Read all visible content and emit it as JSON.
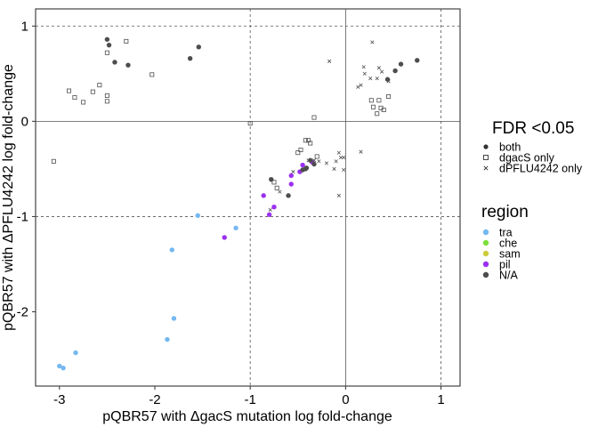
{
  "chart_data": {
    "type": "scatter",
    "xlabel": "pQBR57 with ΔgacS mutation log fold-change",
    "ylabel": "pQBR57 with ΔPFLU4242 log fold-change",
    "xlim": [
      -3.25,
      1.2
    ],
    "ylim": [
      -2.78,
      1.18
    ],
    "x_ticks": [
      -3,
      -2,
      -1,
      0,
      1
    ],
    "x_tick_labels": [
      "-3",
      "-2",
      "-1",
      "0",
      "1"
    ],
    "y_ticks": [
      -2,
      -1,
      0,
      1
    ],
    "y_tick_labels": [
      "-2",
      "-1",
      "0",
      "1"
    ],
    "reference_lines": {
      "solid": {
        "x": 0,
        "y": 0
      },
      "dashed": {
        "x": [
          -1,
          1
        ],
        "y": [
          -1,
          1
        ]
      }
    },
    "grid": false,
    "legend_placement": "right",
    "legends": [
      {
        "title": "FDR <0.05",
        "entries": [
          {
            "label": "both",
            "marker": "filled-circle"
          },
          {
            "label": "dgacS only",
            "marker": "open-square"
          },
          {
            "label": "dPFLU4242 only",
            "marker": "x"
          }
        ]
      },
      {
        "title": "region",
        "entries": [
          {
            "label": "tra",
            "color": "#74b8f0"
          },
          {
            "label": "che",
            "color": "#7ce03a"
          },
          {
            "label": "sam",
            "color": "#cccc3a"
          },
          {
            "label": "pil",
            "color": "#9b30f0"
          },
          {
            "label": "N/A",
            "color": "#4d4d4d"
          }
        ]
      }
    ],
    "series": [
      {
        "name": "both / tra",
        "color": "#74b8f0",
        "marker": "filled-circle",
        "points": [
          [
            -1.55,
            -0.99
          ],
          [
            -1.15,
            -1.12
          ],
          [
            -1.82,
            -1.35
          ],
          [
            -1.8,
            -2.07
          ],
          [
            -1.87,
            -2.29
          ],
          [
            -2.83,
            -2.43
          ],
          [
            -3.0,
            -2.57
          ],
          [
            -2.96,
            -2.59
          ]
        ]
      },
      {
        "name": "both / pil",
        "color": "#9b30f0",
        "marker": "filled-circle",
        "points": [
          [
            -1.27,
            -1.22
          ],
          [
            -0.86,
            -0.78
          ],
          [
            -0.8,
            -0.98
          ],
          [
            -0.75,
            -0.9
          ],
          [
            -0.57,
            -0.57
          ],
          [
            -0.57,
            -0.66
          ],
          [
            -0.48,
            -0.53
          ],
          [
            -0.45,
            -0.46
          ],
          [
            -0.35,
            -0.43
          ]
        ]
      },
      {
        "name": "both / N/A",
        "color": "#4d4d4d",
        "marker": "filled-circle",
        "points": [
          [
            -2.5,
            0.86
          ],
          [
            -2.48,
            0.8
          ],
          [
            -2.42,
            0.62
          ],
          [
            -2.28,
            0.59
          ],
          [
            -1.63,
            0.66
          ],
          [
            -1.54,
            0.78
          ],
          [
            -0.78,
            -0.61
          ],
          [
            -0.6,
            -0.78
          ],
          [
            -0.45,
            -0.51
          ],
          [
            -0.42,
            -0.5
          ],
          [
            -0.37,
            -0.41
          ],
          [
            -0.33,
            -0.45
          ],
          [
            -0.41,
            -0.49
          ],
          [
            0.44,
            0.44
          ],
          [
            0.52,
            0.53
          ],
          [
            0.58,
            0.6
          ],
          [
            0.75,
            0.64
          ]
        ]
      },
      {
        "name": "dgacS only",
        "color": "#4d4d4d",
        "marker": "open-square",
        "points": [
          [
            -3.06,
            -0.42
          ],
          [
            -2.9,
            0.32
          ],
          [
            -2.84,
            0.25
          ],
          [
            -2.75,
            0.2
          ],
          [
            -2.65,
            0.31
          ],
          [
            -2.58,
            0.38
          ],
          [
            -2.5,
            0.27
          ],
          [
            -2.5,
            0.21
          ],
          [
            -2.5,
            0.72
          ],
          [
            -2.3,
            0.84
          ],
          [
            -2.03,
            0.49
          ],
          [
            -1.0,
            -0.02
          ],
          [
            -0.75,
            -0.64
          ],
          [
            -0.72,
            -0.7
          ],
          [
            -0.5,
            -0.33
          ],
          [
            -0.47,
            -0.3
          ],
          [
            -0.42,
            -0.2
          ],
          [
            -0.39,
            -0.2
          ],
          [
            -0.37,
            -0.23
          ],
          [
            -0.33,
            0.04
          ],
          [
            -0.3,
            -0.37
          ],
          [
            0.27,
            0.22
          ],
          [
            0.29,
            0.15
          ],
          [
            0.33,
            0.08
          ],
          [
            0.35,
            0.22
          ],
          [
            0.37,
            0.14
          ],
          [
            0.4,
            0.12
          ],
          [
            0.45,
            0.26
          ]
        ]
      },
      {
        "name": "dPFLU4242 only",
        "color": "#4d4d4d",
        "marker": "x",
        "points": [
          [
            -0.69,
            -0.74
          ],
          [
            -0.79,
            -0.93
          ],
          [
            -0.55,
            -0.53
          ],
          [
            -0.39,
            -0.41
          ],
          [
            -0.33,
            -0.41
          ],
          [
            -0.28,
            -0.42
          ],
          [
            -0.2,
            -0.44
          ],
          [
            -0.12,
            -0.5
          ],
          [
            -0.1,
            -0.42
          ],
          [
            -0.07,
            -0.33
          ],
          [
            -0.05,
            -0.38
          ],
          [
            -0.02,
            -0.38
          ],
          [
            -0.02,
            -0.51
          ],
          [
            -0.07,
            -0.78
          ],
          [
            -0.17,
            0.63
          ],
          [
            0.13,
            0.36
          ],
          [
            0.16,
            0.38
          ],
          [
            0.19,
            0.57
          ],
          [
            0.2,
            0.5
          ],
          [
            0.26,
            0.45
          ],
          [
            0.28,
            0.83
          ],
          [
            0.33,
            0.45
          ],
          [
            0.35,
            0.56
          ],
          [
            0.38,
            0.52
          ],
          [
            0.45,
            0.42
          ],
          [
            0.16,
            -0.32
          ]
        ]
      }
    ]
  }
}
